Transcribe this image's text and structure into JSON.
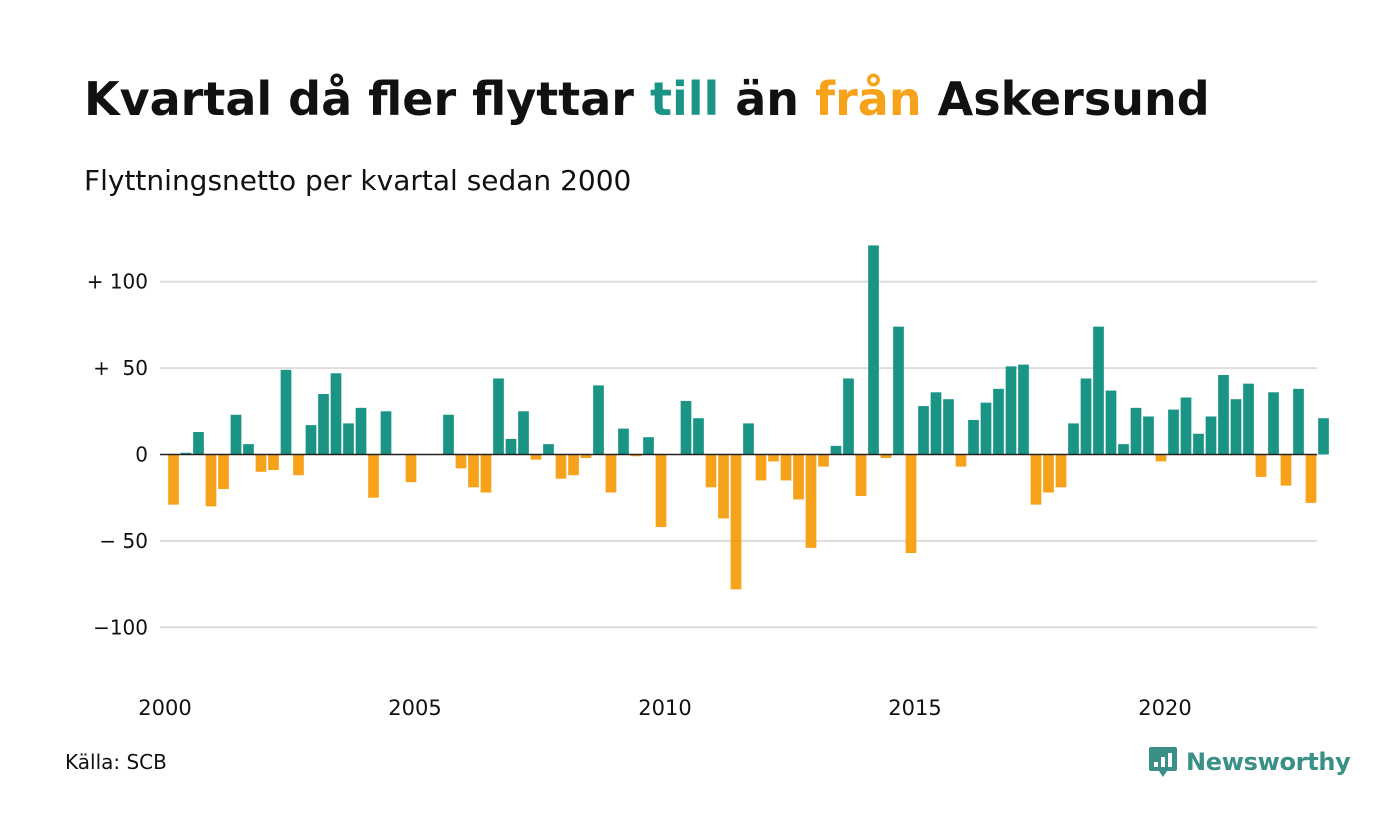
{
  "title": {
    "part1": "Kvartal då fler flyttar ",
    "highlight_in": "till",
    "part2": " än ",
    "highlight_out": "från",
    "part3": " Askersund"
  },
  "subtitle": "Flyttningsnetto per kvartal sedan 2000",
  "source": "Källa: SCB",
  "brand": {
    "name": "Newsworthy",
    "icon": "newsworthy-logo-icon"
  },
  "colors": {
    "positive": "#1a9485",
    "negative": "#f7a21b",
    "grid": "#dddddd",
    "zero_line": "#222222",
    "text": "#111111"
  },
  "chart_data": {
    "type": "bar",
    "title": "Kvartal då fler flyttar till än från Askersund",
    "subtitle": "Flyttningsnetto per kvartal sedan 2000",
    "x_start": 2000,
    "quarters_per_year": 4,
    "xlim": [
      2000,
      2023
    ],
    "ylim": [
      -130,
      120
    ],
    "grid": true,
    "y_ticks": [
      {
        "value": 100,
        "label": "+ 100"
      },
      {
        "value": 50,
        "label": "+  50"
      },
      {
        "value": 0,
        "label": "0"
      },
      {
        "value": -50,
        "label": "− 50"
      },
      {
        "value": -100,
        "label": "−100"
      }
    ],
    "x_ticks": [
      {
        "value": 2000,
        "label": "2000"
      },
      {
        "value": 2005,
        "label": "2005"
      },
      {
        "value": 2010,
        "label": "2010"
      },
      {
        "value": 2015,
        "label": "2015"
      },
      {
        "value": 2020,
        "label": "2020"
      }
    ],
    "values": [
      -29,
      1,
      13,
      -30,
      -20,
      23,
      6,
      -10,
      -9,
      49,
      -12,
      17,
      35,
      47,
      18,
      27,
      -25,
      25,
      0,
      -16,
      0,
      0,
      23,
      -8,
      -19,
      -22,
      44,
      9,
      25,
      -3,
      6,
      -14,
      -12,
      -2,
      40,
      -22,
      15,
      -1,
      10,
      -42,
      0,
      31,
      21,
      -19,
      -37,
      -78,
      18,
      -15,
      -4,
      -15,
      -26,
      -54,
      -7,
      5,
      44,
      -24,
      121,
      -2,
      74,
      -57,
      28,
      36,
      32,
      -7,
      20,
      30,
      38,
      51,
      52,
      -29,
      -22,
      -19,
      18,
      44,
      74,
      37,
      6,
      27,
      22,
      -4,
      26,
      33,
      12,
      22,
      46,
      32,
      41,
      -13,
      36,
      -18,
      38,
      -28,
      21
    ]
  }
}
